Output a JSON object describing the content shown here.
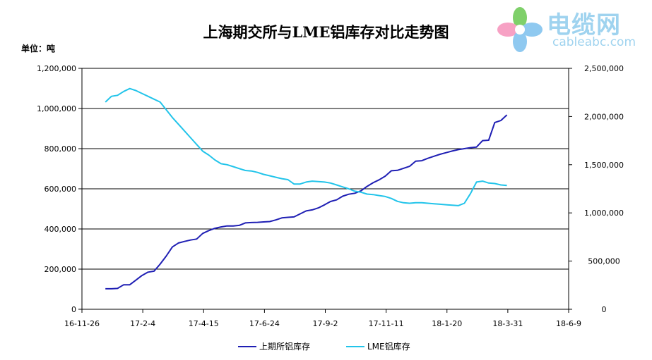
{
  "title": "上海期交所与LME铝库存对比走势图",
  "unit_label": "单位：吨",
  "logo": {
    "main_text": "电缆网",
    "sub_text": "cableabc.com",
    "icon": "flower-logo-icon",
    "color": "#9fd3ef"
  },
  "chart_data": {
    "type": "line",
    "title": "上海期交所与LME铝库存对比走势图",
    "x_axis": {
      "tick_labels": [
        "16-11-26",
        "17-2-4",
        "17-4-15",
        "17-6-24",
        "17-9-2",
        "17-11-11",
        "18-1-20",
        "18-3-31",
        "18-6-9"
      ],
      "range": [
        "2016-11-26",
        "2018-06-09"
      ]
    },
    "y_left": {
      "tick_labels": [
        "0",
        "200,000",
        "400,000",
        "600,000",
        "800,000",
        "1,000,000",
        "1,200,000"
      ],
      "range": [
        0,
        1200000
      ]
    },
    "y_right": {
      "tick_labels": [
        "0",
        "500,000",
        "1,000,000",
        "1,500,000",
        "2,000,000",
        "2,500,000"
      ],
      "range": [
        0,
        2500000
      ]
    },
    "grid": true,
    "legend_position": "bottom",
    "series": [
      {
        "name": "上期所铝库存",
        "axis": "left",
        "color": "#1f1fb4",
        "points": [
          [
            "2016-12-23",
            102000
          ],
          [
            "2016-12-30",
            102000
          ],
          [
            "2017-01-06",
            104000
          ],
          [
            "2017-01-13",
            122000
          ],
          [
            "2017-01-20",
            122000
          ],
          [
            "2017-01-27",
            145000
          ],
          [
            "2017-02-03",
            168000
          ],
          [
            "2017-02-10",
            185000
          ],
          [
            "2017-02-17",
            190000
          ],
          [
            "2017-02-24",
            225000
          ],
          [
            "2017-03-03",
            265000
          ],
          [
            "2017-03-10",
            310000
          ],
          [
            "2017-03-17",
            330000
          ],
          [
            "2017-03-24",
            338000
          ],
          [
            "2017-03-31",
            345000
          ],
          [
            "2017-04-07",
            350000
          ],
          [
            "2017-04-14",
            378000
          ],
          [
            "2017-04-21",
            392000
          ],
          [
            "2017-04-28",
            403000
          ],
          [
            "2017-05-05",
            410000
          ],
          [
            "2017-05-12",
            415000
          ],
          [
            "2017-05-19",
            415000
          ],
          [
            "2017-05-26",
            418000
          ],
          [
            "2017-06-02",
            430000
          ],
          [
            "2017-06-09",
            432000
          ],
          [
            "2017-06-16",
            433000
          ],
          [
            "2017-06-23",
            435000
          ],
          [
            "2017-06-30",
            437000
          ],
          [
            "2017-07-07",
            445000
          ],
          [
            "2017-07-14",
            455000
          ],
          [
            "2017-07-21",
            458000
          ],
          [
            "2017-07-28",
            460000
          ],
          [
            "2017-08-04",
            475000
          ],
          [
            "2017-08-11",
            490000
          ],
          [
            "2017-08-18",
            495000
          ],
          [
            "2017-08-25",
            505000
          ],
          [
            "2017-09-01",
            520000
          ],
          [
            "2017-09-08",
            537000
          ],
          [
            "2017-09-15",
            545000
          ],
          [
            "2017-09-22",
            563000
          ],
          [
            "2017-09-29",
            573000
          ],
          [
            "2017-10-06",
            578000
          ],
          [
            "2017-10-13",
            590000
          ],
          [
            "2017-10-20",
            612000
          ],
          [
            "2017-10-27",
            630000
          ],
          [
            "2017-11-03",
            645000
          ],
          [
            "2017-11-10",
            663000
          ],
          [
            "2017-11-17",
            690000
          ],
          [
            "2017-11-24",
            692000
          ],
          [
            "2017-12-01",
            702000
          ],
          [
            "2017-12-08",
            712000
          ],
          [
            "2017-12-15",
            738000
          ],
          [
            "2017-12-22",
            740000
          ],
          [
            "2017-12-29",
            752000
          ],
          [
            "2018-01-05",
            762000
          ],
          [
            "2018-01-12",
            772000
          ],
          [
            "2018-01-19",
            780000
          ],
          [
            "2018-01-26",
            788000
          ],
          [
            "2018-02-02",
            795000
          ],
          [
            "2018-02-09",
            800000
          ],
          [
            "2018-02-16",
            805000
          ],
          [
            "2018-02-23",
            808000
          ],
          [
            "2018-03-02",
            840000
          ],
          [
            "2018-03-09",
            842000
          ],
          [
            "2018-03-16",
            930000
          ],
          [
            "2018-03-23",
            940000
          ],
          [
            "2018-03-30",
            968000
          ]
        ]
      },
      {
        "name": "LME铝库存",
        "axis": "right",
        "color": "#22c4ea",
        "points": [
          [
            "2016-12-23",
            2150000
          ],
          [
            "2016-12-30",
            2210000
          ],
          [
            "2017-01-06",
            2220000
          ],
          [
            "2017-01-13",
            2260000
          ],
          [
            "2017-01-20",
            2290000
          ],
          [
            "2017-01-27",
            2270000
          ],
          [
            "2017-02-03",
            2240000
          ],
          [
            "2017-02-10",
            2210000
          ],
          [
            "2017-02-17",
            2180000
          ],
          [
            "2017-02-24",
            2150000
          ],
          [
            "2017-03-03",
            2070000
          ],
          [
            "2017-03-10",
            1990000
          ],
          [
            "2017-03-17",
            1920000
          ],
          [
            "2017-03-24",
            1850000
          ],
          [
            "2017-03-31",
            1780000
          ],
          [
            "2017-04-07",
            1710000
          ],
          [
            "2017-04-14",
            1640000
          ],
          [
            "2017-04-21",
            1600000
          ],
          [
            "2017-04-28",
            1550000
          ],
          [
            "2017-05-05",
            1510000
          ],
          [
            "2017-05-12",
            1500000
          ],
          [
            "2017-05-19",
            1480000
          ],
          [
            "2017-05-26",
            1460000
          ],
          [
            "2017-06-02",
            1440000
          ],
          [
            "2017-06-09",
            1435000
          ],
          [
            "2017-06-16",
            1420000
          ],
          [
            "2017-06-23",
            1400000
          ],
          [
            "2017-06-30",
            1385000
          ],
          [
            "2017-07-07",
            1370000
          ],
          [
            "2017-07-14",
            1355000
          ],
          [
            "2017-07-21",
            1345000
          ],
          [
            "2017-07-28",
            1300000
          ],
          [
            "2017-08-04",
            1300000
          ],
          [
            "2017-08-11",
            1320000
          ],
          [
            "2017-08-18",
            1330000
          ],
          [
            "2017-08-25",
            1325000
          ],
          [
            "2017-09-01",
            1320000
          ],
          [
            "2017-09-08",
            1310000
          ],
          [
            "2017-09-15",
            1290000
          ],
          [
            "2017-09-22",
            1270000
          ],
          [
            "2017-09-29",
            1250000
          ],
          [
            "2017-10-06",
            1225000
          ],
          [
            "2017-10-13",
            1215000
          ],
          [
            "2017-10-20",
            1195000
          ],
          [
            "2017-10-27",
            1190000
          ],
          [
            "2017-11-03",
            1180000
          ],
          [
            "2017-11-10",
            1170000
          ],
          [
            "2017-11-17",
            1150000
          ],
          [
            "2017-11-24",
            1120000
          ],
          [
            "2017-12-01",
            1105000
          ],
          [
            "2017-12-08",
            1100000
          ],
          [
            "2017-12-15",
            1105000
          ],
          [
            "2017-12-22",
            1105000
          ],
          [
            "2017-12-29",
            1100000
          ],
          [
            "2018-01-05",
            1095000
          ],
          [
            "2018-01-12",
            1090000
          ],
          [
            "2018-01-19",
            1085000
          ],
          [
            "2018-01-26",
            1080000
          ],
          [
            "2018-02-02",
            1075000
          ],
          [
            "2018-02-09",
            1100000
          ],
          [
            "2018-02-16",
            1200000
          ],
          [
            "2018-02-23",
            1320000
          ],
          [
            "2018-03-02",
            1330000
          ],
          [
            "2018-03-09",
            1310000
          ],
          [
            "2018-03-16",
            1305000
          ],
          [
            "2018-03-23",
            1290000
          ],
          [
            "2018-03-30",
            1285000
          ]
        ]
      }
    ]
  }
}
